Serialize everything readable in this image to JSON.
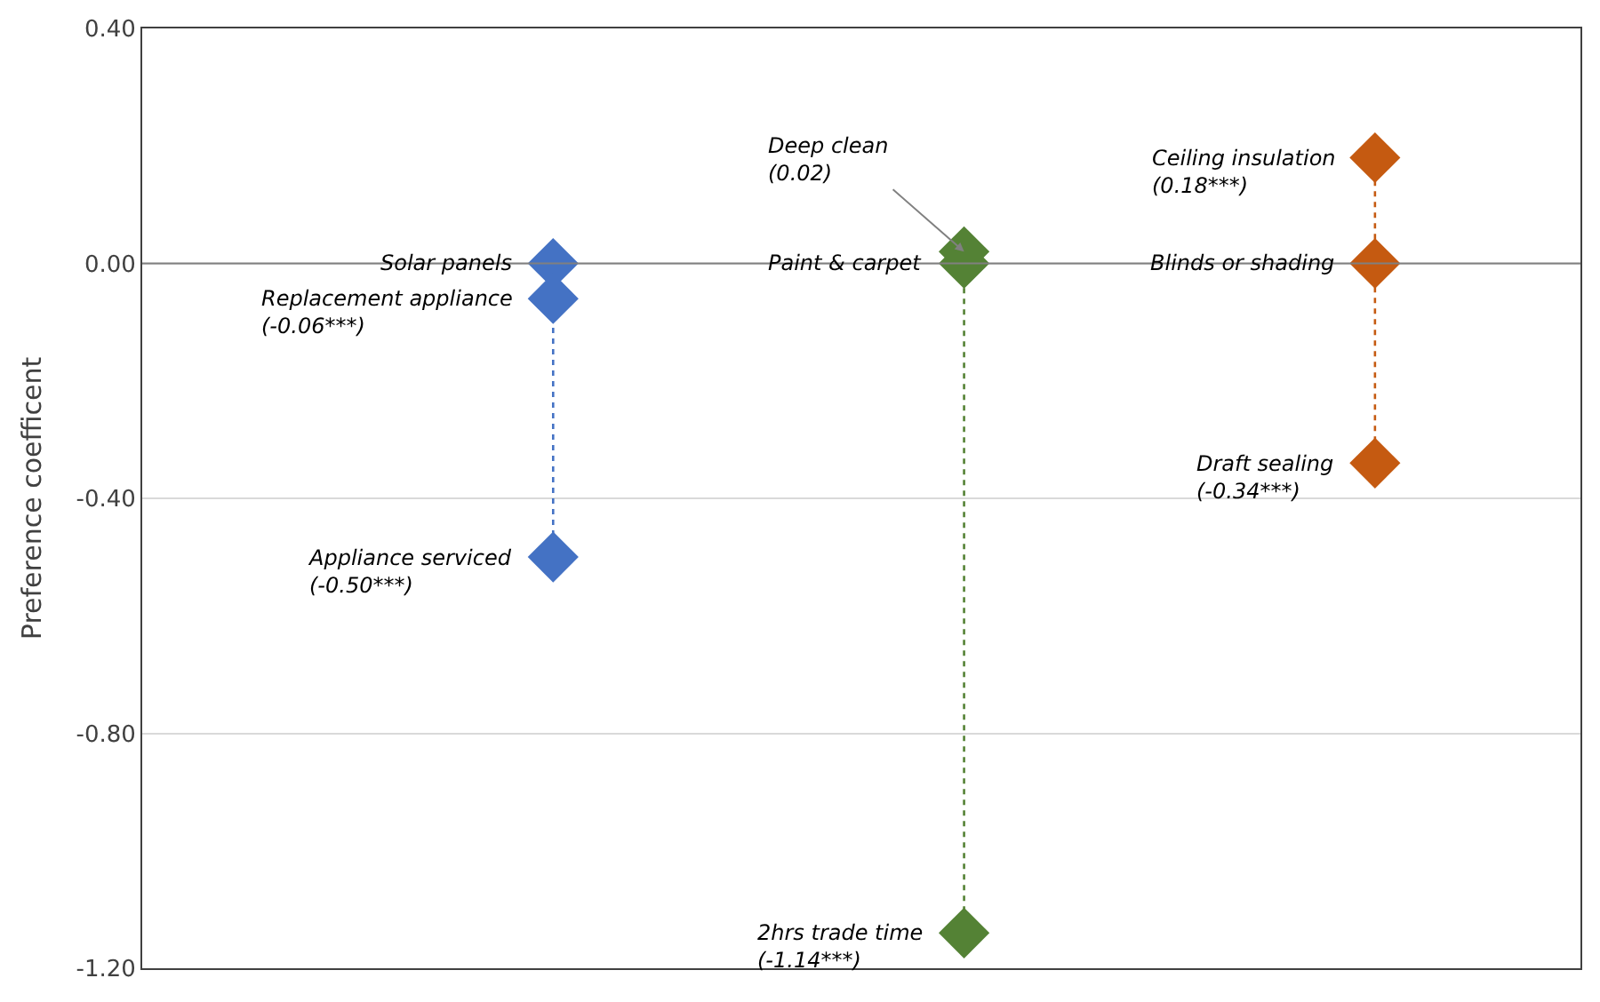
{
  "chart_data": {
    "type": "scatter",
    "ylabel": "Preference coefficent",
    "categories": [
      null,
      null,
      null
    ],
    "series": [
      {
        "colors": [
          "#4472c4",
          "#548235",
          "#c55a11"
        ],
        "values": [
          0.0,
          0.02,
          0.18
        ]
      },
      {
        "colors": [
          "#4472c4",
          "#548235",
          "#c55a11"
        ],
        "values": [
          -0.06,
          0.0,
          0.0
        ]
      },
      {
        "colors": [
          "#4472c4",
          "#548235",
          "#c55a11"
        ],
        "values": [
          -0.5,
          -1.14,
          -0.34
        ]
      }
    ],
    "marker": "diamond",
    "line_style": "dotted",
    "ylim": [
      -1.2,
      0.4
    ],
    "yticks": [
      {
        "value": 0.4,
        "label": "0.40"
      },
      {
        "value": 0.0,
        "label": "0.00"
      },
      {
        "value": -0.4,
        "label": "-0.40"
      },
      {
        "value": -0.8,
        "label": "-0.80"
      },
      {
        "value": -1.2,
        "label": "-1.20"
      }
    ],
    "grid": "y",
    "ref_lines": [
      {
        "axis": "y",
        "value": 0.0,
        "color": "#808080"
      }
    ],
    "annotations": [
      "Solar panels",
      "Deep clean\n(0.02)",
      "Ceiling insulation\n(0.18***)",
      "Replacement appliance\n(-0.06***)",
      "Paint & carpet",
      "Blinds or shading",
      "Appliance serviced\n(-0.50***)",
      "2hrs trade time\n(-1.14***)",
      "Draft sealing\n(-0.34***)"
    ]
  }
}
